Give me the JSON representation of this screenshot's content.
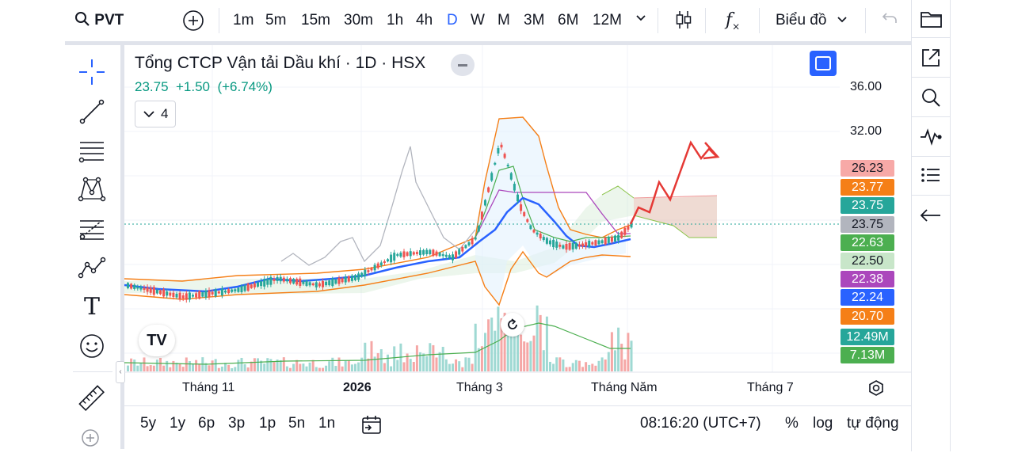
{
  "toolbar": {
    "symbol": "PVT",
    "intervals": [
      "1m",
      "5m",
      "15m",
      "30m",
      "1h",
      "4h",
      "D",
      "W",
      "M",
      "3M",
      "6M",
      "12M"
    ],
    "active_interval": "D",
    "chart_type_label": "Biểu đồ",
    "colors": {
      "active": "#2962ff"
    }
  },
  "legend": {
    "title": "Tổng CTCP Vận tải Dầu khí · 1D · HSX",
    "price": "23.75",
    "change": "+1.50",
    "change_pct": "(+6.74%)",
    "indicator_count": "4",
    "colors": {
      "up": "#089981"
    }
  },
  "price_axis": {
    "labels": [
      "36.00",
      "32.00"
    ],
    "tags": [
      {
        "value": "26.23",
        "bg": "#f7a9a7",
        "fg": "#131722"
      },
      {
        "value": "23.77",
        "bg": "#f57f17",
        "fg": "#ffffff"
      },
      {
        "value": "23.75",
        "bg": "#26a69a",
        "fg": "#ffffff"
      },
      {
        "value": "23.75",
        "bg": "#b2b5be",
        "fg": "#131722"
      },
      {
        "value": "22.63",
        "bg": "#4caf50",
        "fg": "#ffffff"
      },
      {
        "value": "22.50",
        "bg": "#c8e6c9",
        "fg": "#131722"
      },
      {
        "value": "22.38",
        "bg": "#ab47bc",
        "fg": "#ffffff"
      },
      {
        "value": "22.24",
        "bg": "#2962ff",
        "fg": "#ffffff"
      },
      {
        "value": "20.70",
        "bg": "#f57f17",
        "fg": "#ffffff"
      },
      {
        "value": "12.49M",
        "bg": "#26a69a",
        "fg": "#ffffff"
      },
      {
        "value": "7.13M",
        "bg": "#4caf50",
        "fg": "#ffffff"
      }
    ]
  },
  "time_axis": {
    "labels": [
      "Tháng 11",
      "2026",
      "Tháng 3",
      "Tháng Năm",
      "Tháng 7"
    ],
    "bold": "2026"
  },
  "bottom": {
    "ranges": [
      "5y",
      "1y",
      "6p",
      "3p",
      "1p",
      "5n",
      "1n"
    ],
    "clock": "08:16:20 (UTC+7)",
    "percent": "%",
    "log": "log",
    "auto": "tự động"
  },
  "chart_data": {
    "type": "candlestick",
    "symbol": "PVT",
    "interval": "1D",
    "current_price": 23.75,
    "visible_price_labels": [
      36.0,
      32.0
    ],
    "candles_approx": [
      {
        "period": "Tháng 11",
        "close": 20.3
      },
      {
        "period": "2026",
        "close": 20.8
      },
      {
        "period": "Tháng 3",
        "high": 32.5,
        "close": 30.5
      },
      {
        "period": "Tháng Năm",
        "close": 22.6
      },
      {
        "period": "last",
        "close": 23.75
      }
    ]
  }
}
